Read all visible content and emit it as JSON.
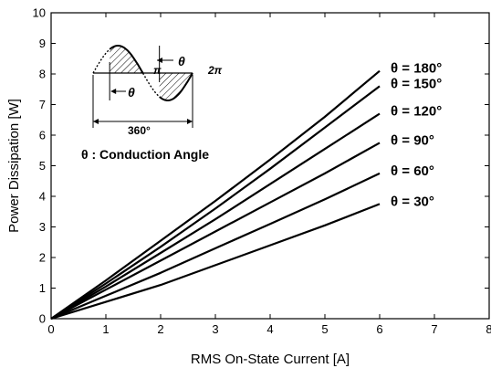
{
  "chart_data": {
    "type": "line",
    "title": "",
    "xlabel": "RMS On-State Current [A]",
    "ylabel": "Power Dissipation [W]",
    "xlim": [
      0,
      8
    ],
    "ylim": [
      0,
      10
    ],
    "xticks": [
      0,
      1,
      2,
      3,
      4,
      5,
      6,
      7,
      8
    ],
    "yticks": [
      0,
      1,
      2,
      3,
      4,
      5,
      6,
      7,
      8,
      9,
      10
    ],
    "grid": false,
    "series": [
      {
        "name": "θ = 180°",
        "x": [
          0,
          1,
          2,
          3,
          4,
          5,
          6
        ],
        "y": [
          0,
          1.25,
          2.55,
          3.85,
          5.2,
          6.6,
          8.1
        ]
      },
      {
        "name": "θ = 150°",
        "x": [
          0,
          1,
          2,
          3,
          4,
          5,
          6
        ],
        "y": [
          0,
          1.15,
          2.35,
          3.6,
          4.9,
          6.25,
          7.6
        ]
      },
      {
        "name": "θ = 120°",
        "x": [
          0,
          1,
          2,
          3,
          4,
          5,
          6
        ],
        "y": [
          0,
          1.05,
          2.15,
          3.25,
          4.4,
          5.55,
          6.7
        ]
      },
      {
        "name": "θ = 90°",
        "x": [
          0,
          1,
          2,
          3,
          4,
          5,
          6
        ],
        "y": [
          0,
          0.95,
          1.9,
          2.85,
          3.8,
          4.75,
          5.75
        ]
      },
      {
        "name": "θ = 60°",
        "x": [
          0,
          1,
          2,
          3,
          4,
          5,
          6
        ],
        "y": [
          0,
          0.75,
          1.5,
          2.3,
          3.1,
          3.9,
          4.75
        ]
      },
      {
        "name": "θ = 30°",
        "x": [
          0,
          1,
          2,
          3,
          4,
          5,
          6
        ],
        "y": [
          0,
          0.55,
          1.1,
          1.75,
          2.4,
          3.05,
          3.75
        ]
      }
    ],
    "inset": {
      "labels": {
        "pi": "π",
        "two_pi": "2π",
        "theta_right": "θ",
        "theta_left": "θ",
        "degrees": "360°",
        "note": "θ : Conduction Angle"
      }
    }
  }
}
